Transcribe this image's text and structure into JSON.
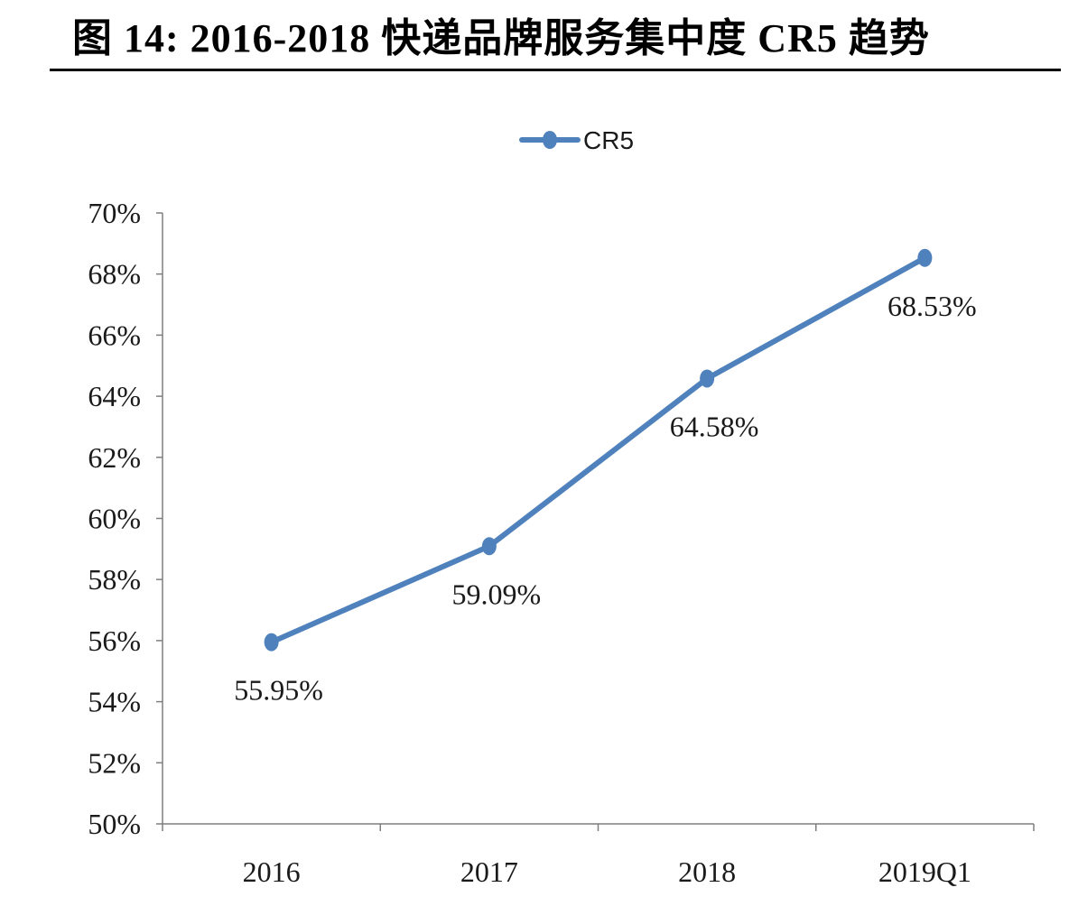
{
  "figure": {
    "title": "图 14: 2016-2018 快递品牌服务集中度 CR5 趋势"
  },
  "chart_data": {
    "type": "line",
    "categories": [
      "2016",
      "2017",
      "2018",
      "2019Q1"
    ],
    "series": [
      {
        "name": "CR5",
        "values": [
          55.95,
          59.09,
          64.58,
          68.53
        ],
        "labels": [
          "55.95%",
          "59.09%",
          "64.58%",
          "68.53%"
        ],
        "color": "#4f81bd"
      }
    ],
    "ylim": [
      50,
      70
    ],
    "yticks": [
      "50%",
      "52%",
      "54%",
      "56%",
      "58%",
      "60%",
      "62%",
      "64%",
      "66%",
      "68%",
      "70%"
    ],
    "grid": false,
    "legend_position": "top-center",
    "data_labels": "below",
    "xlabel": "",
    "ylabel": ""
  }
}
